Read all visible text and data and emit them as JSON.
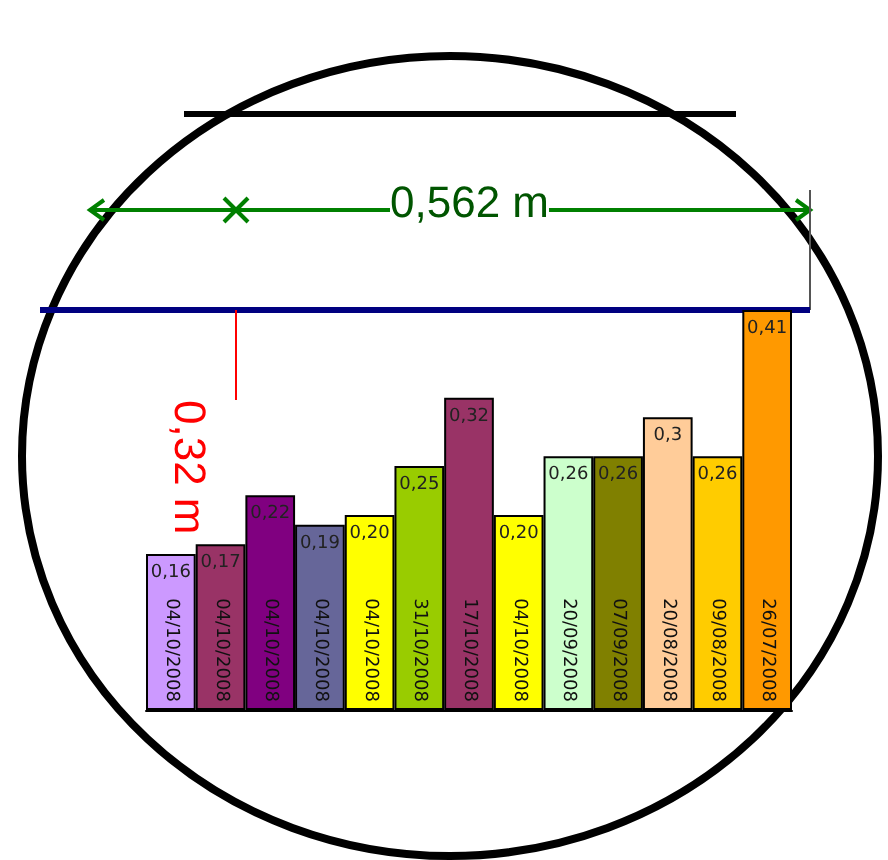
{
  "chart_data": {
    "type": "bar",
    "categories": [
      "04/10/2008",
      "04/10/2008",
      "04/10/2008",
      "04/10/2008",
      "04/10/2008",
      "31/10/2008",
      "17/10/2008",
      "04/10/2008",
      "20/09/2008",
      "07/09/2008",
      "20/08/2008",
      "09/08/2008",
      "26/07/2008"
    ],
    "values": [
      0.16,
      0.17,
      0.22,
      0.19,
      0.2,
      0.25,
      0.32,
      0.2,
      0.26,
      0.26,
      0.3,
      0.26,
      0.41
    ],
    "value_labels": [
      "0,16",
      "0,17",
      "0,22",
      "0,19",
      "0,20",
      "0,25",
      "0,32",
      "0,20",
      "0,26",
      "0,26",
      "0,3",
      "0,26",
      "0,41"
    ],
    "colors": [
      "#cc99ff",
      "#993366",
      "#800080",
      "#666699",
      "#ffff00",
      "#99cc00",
      "#993366",
      "#ffff00",
      "#ccffcc",
      "#808000",
      "#ffcc99",
      "#ffcc00",
      "#ff9900"
    ],
    "ylim": [
      0,
      0.41
    ],
    "annotations": [
      "0,562 m",
      "0,32 m"
    ],
    "grid": false
  }
}
